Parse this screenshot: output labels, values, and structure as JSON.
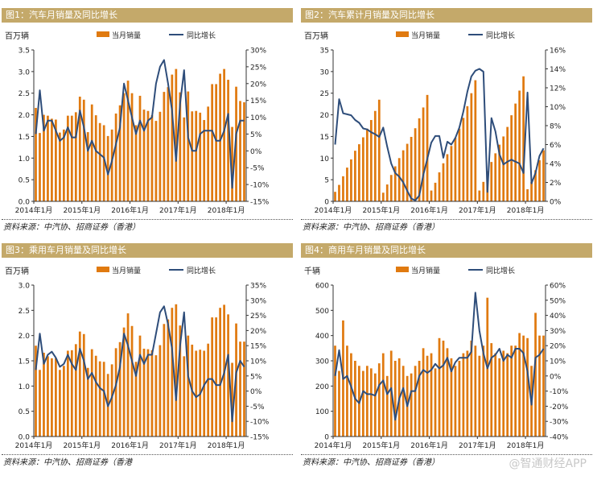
{
  "watermark": "@智通财经APP",
  "source_text": "资料来源：中汽协、招商证券（香港）",
  "source_text_alt": "资料来源：中汽协、招商证券（香港",
  "colors": {
    "bar": "#E07A10",
    "line": "#2E4D7A",
    "header": "#C4A96A",
    "axis": "#333333"
  },
  "chart_data": [
    {
      "type": "bar",
      "title": "图1：汽车月销量及同比增长",
      "unit_label": "百万辆",
      "legend": [
        "当月销量",
        "同比增长"
      ],
      "series": [
        {
          "name": "当月销量",
          "kind": "bar",
          "axis": "left",
          "values": [
            2.16,
            1.58,
            2.0,
            1.98,
            1.91,
            1.89,
            1.59,
            1.66,
            1.98,
            1.98,
            2.06,
            2.42,
            2.35,
            1.6,
            2.24,
            1.99,
            1.81,
            1.76,
            1.51,
            1.66,
            2.03,
            2.22,
            2.5,
            2.79,
            2.5,
            1.76,
            2.44,
            2.12,
            2.09,
            1.99,
            1.86,
            2.07,
            2.53,
            2.64,
            2.93,
            3.06,
            2.52,
            1.94,
            2.54,
            2.08,
            2.09,
            2.05,
            1.88,
            2.19,
            2.71,
            2.71,
            2.95,
            3.06,
            2.81,
            1.72,
            2.65,
            2.32,
            2.29
          ]
        },
        {
          "name": "同比增长",
          "kind": "line",
          "axis": "right",
          "values": [
            5,
            18,
            6,
            9,
            9,
            6,
            3,
            4,
            7,
            4,
            4,
            12,
            7,
            0,
            3,
            0,
            -1,
            -2,
            -7,
            -3,
            2,
            7,
            20,
            15,
            10,
            5,
            9,
            6,
            9,
            10,
            20,
            25,
            27,
            20,
            12,
            -3,
            14,
            24,
            4,
            0,
            0,
            5,
            6,
            6,
            6,
            3,
            3,
            6,
            11,
            -11,
            5,
            9,
            9
          ]
        }
      ],
      "left_axis": {
        "min": 0.0,
        "max": 3.5,
        "step": 0.5,
        "decimals": 1
      },
      "right_axis": {
        "min": -15,
        "max": 30,
        "step": 5,
        "suffix": "%"
      },
      "x_ticks": [
        {
          "i": 0,
          "label": "2014年1月"
        },
        {
          "i": 12,
          "label": "2015年1月"
        },
        {
          "i": 24,
          "label": "2016年1月"
        },
        {
          "i": 36,
          "label": "2017年1月"
        },
        {
          "i": 48,
          "label": "2018年1月"
        }
      ],
      "source": "资料来源：中汽协、招商证券（香港）"
    },
    {
      "type": "bar",
      "title": "图2：汽车累计月销量及同比增长",
      "unit_label": "百万辆",
      "legend": [
        "当月销量",
        "同比增长"
      ],
      "series": [
        {
          "name": "当月销量",
          "kind": "bar",
          "axis": "left",
          "values": [
            2.2,
            3.8,
            5.8,
            7.8,
            9.7,
            11.7,
            13.2,
            14.8,
            16.8,
            18.8,
            20.9,
            23.5,
            2.0,
            3.9,
            6.1,
            8.1,
            10.0,
            11.8,
            13.3,
            14.9,
            16.9,
            19.2,
            21.7,
            24.6,
            2.5,
            4.3,
            6.7,
            8.8,
            10.9,
            12.8,
            14.7,
            16.8,
            19.3,
            22.0,
            25.0,
            28.0,
            2.5,
            4.5,
            7.0,
            9.1,
            11.1,
            13.1,
            15.0,
            17.2,
            19.9,
            22.6,
            25.6,
            28.9,
            2.8,
            4.5,
            7.2,
            9.5,
            11.8
          ]
        },
        {
          "name": "同比增长",
          "kind": "line",
          "axis": "right",
          "values": [
            6,
            10.8,
            9.3,
            9.2,
            9.1,
            8.6,
            8.3,
            7.7,
            7.6,
            7.3,
            7.1,
            6.8,
            7.8,
            5.8,
            4.0,
            3.0,
            2.6,
            2.0,
            1.1,
            0.3,
            0.1,
            0.6,
            2.8,
            4.5,
            6.2,
            6.9,
            6.9,
            4.6,
            6.3,
            6.0,
            6.7,
            7.8,
            9.5,
            11.6,
            13.2,
            13.8,
            14.0,
            13.7,
            1.0,
            8.8,
            7.4,
            5.0,
            3.9,
            4.2,
            4.4,
            4.2,
            4.0,
            3.0,
            11.5,
            1.9,
            3.0,
            4.8,
            5.6
          ]
        }
      ],
      "left_axis": {
        "min": 0,
        "max": 35,
        "step": 5,
        "decimals": 0
      },
      "right_axis": {
        "min": 0,
        "max": 16,
        "step": 2,
        "suffix": "%"
      },
      "x_ticks": [
        {
          "i": 0,
          "label": "2014年1月"
        },
        {
          "i": 12,
          "label": "2015年1月"
        },
        {
          "i": 24,
          "label": "2016年1月"
        },
        {
          "i": 36,
          "label": "2017年1月"
        },
        {
          "i": 48,
          "label": "2018年1月"
        }
      ],
      "source": "资料来源：中汽协、招商证券（香港）"
    },
    {
      "type": "bar",
      "title": "图3：乘用车月销量及同比增长",
      "unit_label": "百万辆",
      "legend": [
        "当月销量",
        "同比增长"
      ],
      "series": [
        {
          "name": "当月销量",
          "kind": "bar",
          "axis": "left",
          "values": [
            1.8,
            1.32,
            1.66,
            1.59,
            1.55,
            1.55,
            1.32,
            1.4,
            1.7,
            1.71,
            1.83,
            2.08,
            2.03,
            1.36,
            1.73,
            1.6,
            1.49,
            1.48,
            1.24,
            1.43,
            1.75,
            1.87,
            2.16,
            2.44,
            2.19,
            1.48,
            2.0,
            1.74,
            1.73,
            1.71,
            1.61,
            1.81,
            2.23,
            2.32,
            2.55,
            2.62,
            2.2,
            1.59,
            2.0,
            1.82,
            1.7,
            1.72,
            1.7,
            1.84,
            2.36,
            2.36,
            2.55,
            2.61,
            2.42,
            1.46,
            2.24,
            1.88,
            1.88
          ]
        },
        {
          "name": "同比增长",
          "kind": "line",
          "axis": "right",
          "values": [
            7,
            19,
            9,
            12,
            13,
            11,
            8,
            9,
            12,
            9,
            7,
            14,
            10,
            4,
            6,
            3,
            1,
            0,
            -5,
            -2,
            2,
            8,
            19,
            15,
            10,
            5,
            12,
            9,
            12,
            12,
            19,
            26,
            28,
            22,
            14,
            -3,
            15,
            26,
            5,
            0,
            -2,
            -1,
            2,
            4,
            4,
            2,
            2,
            6,
            12,
            -10,
            6,
            10,
            8
          ]
        }
      ],
      "left_axis": {
        "min": 0.0,
        "max": 3.0,
        "step": 0.5,
        "decimals": 1
      },
      "right_axis": {
        "min": -15,
        "max": 35,
        "step": 5,
        "suffix": "%"
      },
      "x_ticks": [
        {
          "i": 0,
          "label": "2014年1月"
        },
        {
          "i": 12,
          "label": "2015年1月"
        },
        {
          "i": 24,
          "label": "2016年1月"
        },
        {
          "i": 36,
          "label": "2017年1月"
        },
        {
          "i": 48,
          "label": "2018年1月"
        }
      ],
      "source": "资料来源：中汽协、招商证券（香港"
    },
    {
      "type": "bar",
      "title": "图4：商用车月销量及同比增长",
      "unit_label": "千辆",
      "legend": [
        "当月销量",
        "同比增长"
      ],
      "series": [
        {
          "name": "当月销量",
          "kind": "bar",
          "axis": "left",
          "values": [
            360,
            260,
            460,
            360,
            330,
            300,
            280,
            260,
            280,
            270,
            250,
            290,
            330,
            240,
            340,
            300,
            310,
            280,
            240,
            250,
            280,
            300,
            350,
            320,
            330,
            270,
            390,
            380,
            350,
            310,
            280,
            300,
            330,
            340,
            380,
            360,
            320,
            360,
            550,
            370,
            330,
            310,
            340,
            330,
            360,
            360,
            410,
            400,
            390,
            280,
            490,
            400,
            400
          ]
        },
        {
          "name": "同比增长",
          "kind": "line",
          "axis": "right",
          "values": [
            0,
            17,
            -2,
            0,
            -7,
            -15,
            -18,
            -10,
            -12,
            -12,
            -13,
            -6,
            -3,
            -12,
            -8,
            -29,
            -15,
            -8,
            -20,
            -10,
            -10,
            0,
            4,
            2,
            4,
            8,
            5,
            7,
            12,
            3,
            9,
            12,
            12,
            12,
            16,
            55,
            30,
            15,
            5,
            12,
            14,
            18,
            10,
            14,
            12,
            18,
            18,
            15,
            3,
            -19,
            12,
            14,
            18
          ]
        }
      ],
      "left_axis": {
        "min": 0,
        "max": 600,
        "step": 100,
        "decimals": 0
      },
      "right_axis": {
        "min": -40,
        "max": 60,
        "step": 10,
        "suffix": "%"
      },
      "x_ticks": [
        {
          "i": 0,
          "label": "2014年1月"
        },
        {
          "i": 12,
          "label": "2015年1月"
        },
        {
          "i": 24,
          "label": "2016年1月"
        },
        {
          "i": 36,
          "label": "2017年1月"
        },
        {
          "i": 48,
          "label": "2018年1月"
        }
      ],
      "source": "资料来源：中汽协、招商证券（香港）"
    }
  ]
}
